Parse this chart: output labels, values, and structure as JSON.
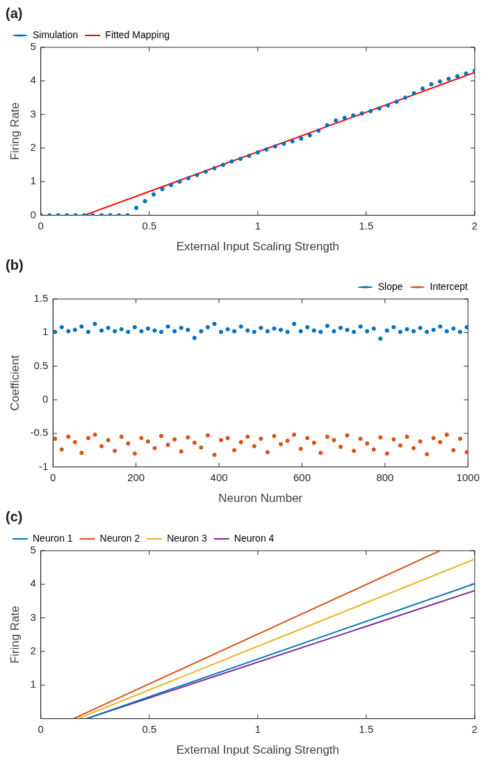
{
  "chart_data": [
    {
      "type": "scatter",
      "title": "(a)",
      "xlabel": "External Input Scaling Strength",
      "ylabel": "Firing Rate",
      "xlim": [
        0,
        2
      ],
      "ylim": [
        0,
        5
      ],
      "xticks": [
        0,
        0.5,
        1,
        1.5,
        2
      ],
      "yticks": [
        0,
        1,
        2,
        3,
        4,
        5
      ],
      "grid": false,
      "legend": "top left",
      "series": [
        {
          "name": "Simulation",
          "type": "scatter",
          "marker": "circle",
          "color": "#0072bd",
          "x": [
            0,
            0.04,
            0.08,
            0.12,
            0.16,
            0.2,
            0.24,
            0.28,
            0.32,
            0.36,
            0.4,
            0.44,
            0.48,
            0.52,
            0.56,
            0.6,
            0.64,
            0.68,
            0.72,
            0.76,
            0.8,
            0.84,
            0.88,
            0.92,
            0.96,
            1.0,
            1.04,
            1.08,
            1.12,
            1.16,
            1.2,
            1.24,
            1.28,
            1.32,
            1.36,
            1.4,
            1.44,
            1.48,
            1.52,
            1.56,
            1.6,
            1.64,
            1.68,
            1.72,
            1.76,
            1.8,
            1.84,
            1.88,
            1.92,
            1.96,
            2.0
          ],
          "values": [
            0,
            0,
            0,
            0,
            0,
            0,
            0,
            0,
            0,
            0,
            0,
            0.22,
            0.42,
            0.62,
            0.78,
            0.9,
            1.0,
            1.1,
            1.2,
            1.3,
            1.4,
            1.5,
            1.6,
            1.68,
            1.77,
            1.87,
            1.96,
            2.05,
            2.13,
            2.2,
            2.28,
            2.38,
            2.52,
            2.68,
            2.82,
            2.9,
            2.97,
            3.03,
            3.1,
            3.18,
            3.27,
            3.38,
            3.5,
            3.63,
            3.77,
            3.9,
            3.98,
            4.06,
            4.14,
            4.22,
            4.3
          ]
        },
        {
          "name": "Fitted Mapping",
          "type": "line",
          "color": "#ff0000",
          "x": [
            0.2,
            2
          ],
          "values": [
            0,
            4.25
          ]
        }
      ]
    },
    {
      "type": "scatter",
      "title": "(b)",
      "xlabel": "Neuron Number",
      "ylabel": "Coefficient",
      "xlim": [
        0,
        1000
      ],
      "ylim": [
        -1,
        1.5
      ],
      "xticks": [
        0,
        200,
        400,
        600,
        800,
        1000
      ],
      "yticks": [
        -1,
        -0.5,
        0,
        0.5,
        1,
        1.5
      ],
      "grid": false,
      "legend": "top right",
      "marker": "circle",
      "x": [
        5,
        21,
        37,
        53,
        69,
        85,
        101,
        117,
        133,
        149,
        165,
        181,
        197,
        213,
        229,
        245,
        261,
        277,
        293,
        309,
        325,
        341,
        357,
        373,
        389,
        405,
        421,
        437,
        453,
        469,
        485,
        501,
        517,
        533,
        549,
        565,
        581,
        597,
        613,
        629,
        645,
        661,
        677,
        693,
        709,
        725,
        741,
        757,
        773,
        789,
        805,
        821,
        837,
        853,
        869,
        885,
        901,
        917,
        933,
        949,
        965,
        981,
        997
      ],
      "series": [
        {
          "name": "Slope",
          "color": "#0072bd",
          "values": [
            1.01,
            1.08,
            1.02,
            1.04,
            1.09,
            1.01,
            1.13,
            1.03,
            1.07,
            1.02,
            1.05,
            1.01,
            1.08,
            1.02,
            1.06,
            1.03,
            1.01,
            1.09,
            1.02,
            1.07,
            1.04,
            0.92,
            1.02,
            1.08,
            1.13,
            1.01,
            1.05,
            1.02,
            1.09,
            1.03,
            1.01,
            1.07,
            1.02,
            1.06,
            1.04,
            1.01,
            1.13,
            1.02,
            1.08,
            1.03,
            1.01,
            1.1,
            1.02,
            1.07,
            1.04,
            1.01,
            1.09,
            1.02,
            1.06,
            0.91,
            1.03,
            1.08,
            1.01,
            1.05,
            1.02,
            1.07,
            1.01,
            1.04,
            1.09,
            1.02,
            1.06,
            1.01,
            1.08
          ]
        },
        {
          "name": "Intercept",
          "color": "#d95319",
          "values": [
            -0.58,
            -0.74,
            -0.55,
            -0.63,
            -0.79,
            -0.57,
            -0.52,
            -0.69,
            -0.6,
            -0.76,
            -0.55,
            -0.65,
            -0.8,
            -0.57,
            -0.62,
            -0.72,
            -0.54,
            -0.67,
            -0.59,
            -0.77,
            -0.56,
            -0.64,
            -0.71,
            -0.53,
            -0.82,
            -0.6,
            -0.57,
            -0.75,
            -0.63,
            -0.55,
            -0.69,
            -0.58,
            -0.78,
            -0.54,
            -0.66,
            -0.61,
            -0.52,
            -0.73,
            -0.57,
            -0.64,
            -0.79,
            -0.55,
            -0.6,
            -0.7,
            -0.53,
            -0.76,
            -0.58,
            -0.65,
            -0.74,
            -0.56,
            -0.8,
            -0.59,
            -0.68,
            -0.55,
            -0.72,
            -0.62,
            -0.81,
            -0.57,
            -0.63,
            -0.52,
            -0.75,
            -0.58,
            -0.78
          ]
        }
      ]
    },
    {
      "type": "line",
      "title": "(c)",
      "xlabel": "External Input Scaling Strength",
      "ylabel": "Firing Rate",
      "xlim": [
        0,
        2
      ],
      "ylim": [
        0,
        5
      ],
      "xticks": [
        0,
        0.5,
        1,
        1.5,
        2
      ],
      "yticks": [
        1,
        2,
        3,
        4,
        5
      ],
      "grid": false,
      "legend": "top left",
      "series": [
        {
          "name": "Neuron 1",
          "color": "#0072bd",
          "x": [
            0.21,
            2
          ],
          "values": [
            0,
            4.02
          ]
        },
        {
          "name": "Neuron 2",
          "color": "#d95319",
          "x": [
            0.15,
            1.84
          ],
          "values": [
            0,
            5
          ]
        },
        {
          "name": "Neuron 3",
          "color": "#edb120",
          "x": [
            0.17,
            2
          ],
          "values": [
            0,
            4.75
          ]
        },
        {
          "name": "Neuron 4",
          "color": "#7e2f8e",
          "x": [
            0.21,
            2
          ],
          "values": [
            0,
            3.81
          ]
        }
      ]
    }
  ]
}
